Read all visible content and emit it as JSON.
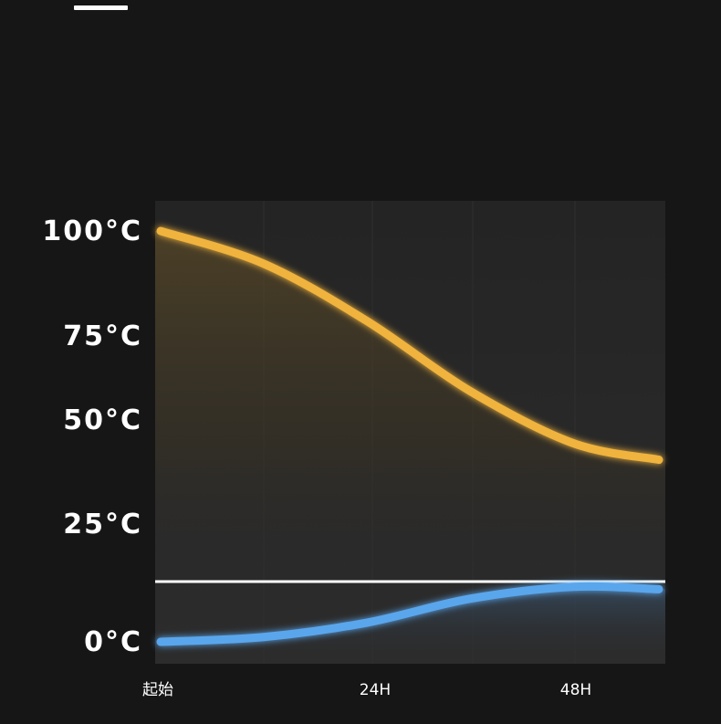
{
  "header": {
    "indicator": ""
  },
  "chart_data": {
    "type": "line",
    "title": "",
    "xlabel": "",
    "ylabel": "",
    "y_ticks": [
      "100°C",
      "75°C",
      "50°C",
      "25°C",
      "0°C"
    ],
    "x_ticks": [
      "起始",
      "24H",
      "48H"
    ],
    "grid": false,
    "series": [
      {
        "color": "#f0b33e",
        "points": [
          {
            "x": 0,
            "y": 100
          },
          {
            "x": 12,
            "y": 92
          },
          {
            "x": 24,
            "y": 78
          },
          {
            "x": 36,
            "y": 58
          },
          {
            "x": 48,
            "y": 44
          },
          {
            "x": 58,
            "y": 40
          }
        ]
      },
      {
        "color": "#5aa6ec",
        "points": [
          {
            "x": 0,
            "y": 0
          },
          {
            "x": 12,
            "y": 1
          },
          {
            "x": 24,
            "y": 4
          },
          {
            "x": 36,
            "y": 9
          },
          {
            "x": 48,
            "y": 11.5
          },
          {
            "x": 58,
            "y": 11
          }
        ]
      }
    ],
    "divider_color": "#ffffff"
  }
}
